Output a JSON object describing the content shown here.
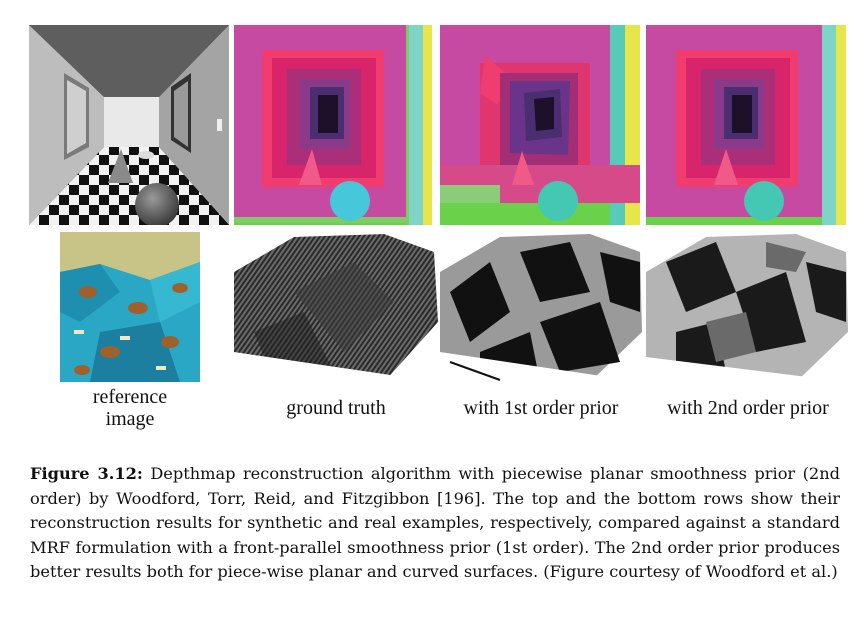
{
  "figure": {
    "labels": {
      "reference": "reference\nimage",
      "ground_truth": "ground truth",
      "first_order": "with 1st order prior",
      "second_order": "with 2nd order prior"
    }
  },
  "caption": {
    "figure_number": "Figure 3.12:",
    "text": "Depthmap reconstruction algorithm with piecewise planar smoothness prior (2nd order) by Woodford, Torr, Reid, and Fitzgibbon [196]. The top and the bottom rows show their reconstruction results for synthetic and real examples, respectively, compared against a standard MRF formulation with a front-parallel smoothness prior (1st order). The 2nd order prior produces better results both for piece-wise planar and curved surfaces. (Figure courtesy of Woodford et al.)"
  }
}
